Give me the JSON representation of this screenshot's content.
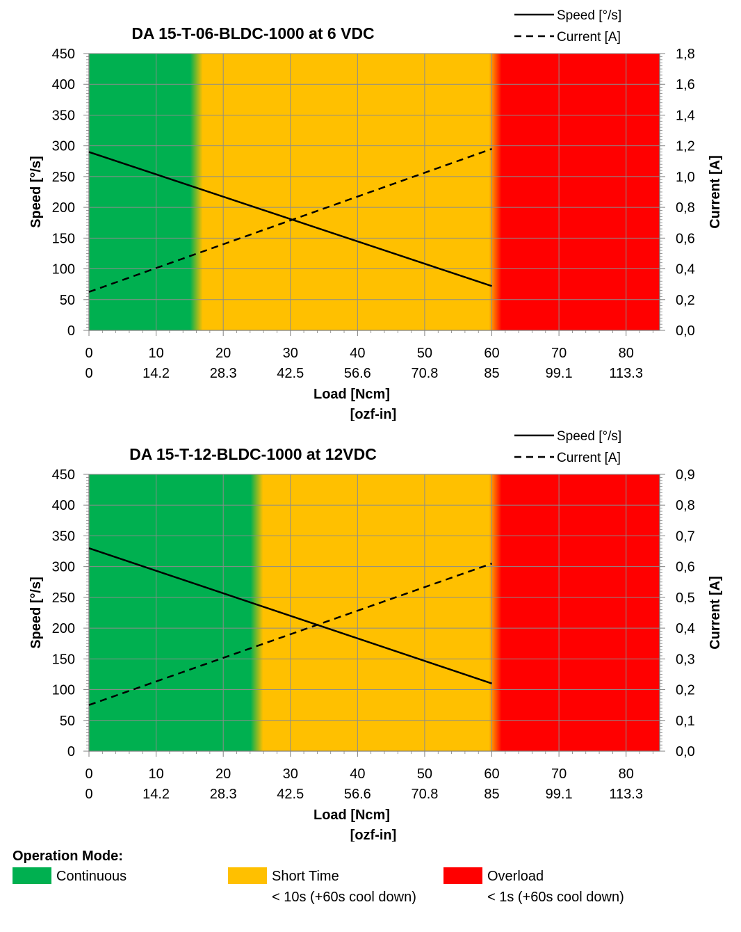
{
  "chart_data": [
    {
      "type": "line",
      "title": "DA 15-T-06-BLDC-1000 at 6 VDC",
      "xlabel": "Load [Ncm]",
      "xlabel2": "[ozf-in]",
      "ylabel": "Speed [°/s]",
      "y2label": "Current [A]",
      "xlim": [
        0,
        85
      ],
      "ylim": [
        0,
        450
      ],
      "y2lim": [
        0,
        1.8
      ],
      "x_ticks": [
        "0",
        "10",
        "20",
        "30",
        "40",
        "50",
        "60",
        "70",
        "80"
      ],
      "x2_ticks": [
        "0",
        "14.2",
        "28.3",
        "42.5",
        "56.6",
        "70.8",
        "85",
        "99.1",
        "113.3"
      ],
      "y_ticks": [
        "0",
        "50",
        "100",
        "150",
        "200",
        "250",
        "300",
        "350",
        "400",
        "450"
      ],
      "y2_ticks": [
        "0,0",
        "0,2",
        "0,4",
        "0,6",
        "0,8",
        "1,0",
        "1,2",
        "1,4",
        "1,6",
        "1,8"
      ],
      "grid": true,
      "legend_position": "top-right",
      "zones": [
        {
          "mode": "continuous",
          "from": 0,
          "to": 16,
          "color": "#00b050"
        },
        {
          "mode": "short-time",
          "from": 16,
          "to": 60.5,
          "color": "#ffc000"
        },
        {
          "mode": "overload",
          "from": 60.5,
          "to": 85,
          "color": "#ff0000"
        }
      ],
      "series": [
        {
          "name": "Speed [°/s]",
          "axis": "left",
          "style": "solid",
          "x": [
            0,
            60
          ],
          "y": [
            290,
            72
          ]
        },
        {
          "name": "Current [A]",
          "axis": "right",
          "style": "dashed",
          "x": [
            0,
            60
          ],
          "y": [
            0.25,
            1.18
          ]
        }
      ]
    },
    {
      "type": "line",
      "title": "DA 15-T-12-BLDC-1000 at 12VDC",
      "xlabel": "Load [Ncm]",
      "xlabel2": "[ozf-in]",
      "ylabel": "Speed [°/s]",
      "y2label": "Current [A]",
      "xlim": [
        0,
        85
      ],
      "ylim": [
        0,
        450
      ],
      "y2lim": [
        0,
        0.9
      ],
      "x_ticks": [
        "0",
        "10",
        "20",
        "30",
        "40",
        "50",
        "60",
        "70",
        "80"
      ],
      "x2_ticks": [
        "0",
        "14.2",
        "28.3",
        "42.5",
        "56.6",
        "70.8",
        "85",
        "99.1",
        "113.3"
      ],
      "y_ticks": [
        "0",
        "50",
        "100",
        "150",
        "200",
        "250",
        "300",
        "350",
        "400",
        "450"
      ],
      "y2_ticks": [
        "0,0",
        "0,1",
        "0,2",
        "0,3",
        "0,4",
        "0,5",
        "0,6",
        "0,7",
        "0,8",
        "0,9"
      ],
      "grid": true,
      "legend_position": "top-right",
      "zones": [
        {
          "mode": "continuous",
          "from": 0,
          "to": 25,
          "color": "#00b050"
        },
        {
          "mode": "short-time",
          "from": 25,
          "to": 60.5,
          "color": "#ffc000"
        },
        {
          "mode": "overload",
          "from": 60.5,
          "to": 85,
          "color": "#ff0000"
        }
      ],
      "series": [
        {
          "name": "Speed [°/s]",
          "axis": "left",
          "style": "solid",
          "x": [
            0,
            60
          ],
          "y": [
            330,
            110
          ]
        },
        {
          "name": "Current [A]",
          "axis": "right",
          "style": "dashed",
          "x": [
            0,
            60
          ],
          "y": [
            0.15,
            0.61
          ]
        }
      ]
    }
  ],
  "operation_legend": {
    "title": "Operation Mode:",
    "items": [
      {
        "label": "Continuous",
        "note": "",
        "color": "#00b050"
      },
      {
        "label": "Short Time",
        "note": "< 10s (+60s cool down)",
        "color": "#ffc000"
      },
      {
        "label": "Overload",
        "note": "< 1s (+60s cool down)",
        "color": "#ff0000"
      }
    ]
  }
}
